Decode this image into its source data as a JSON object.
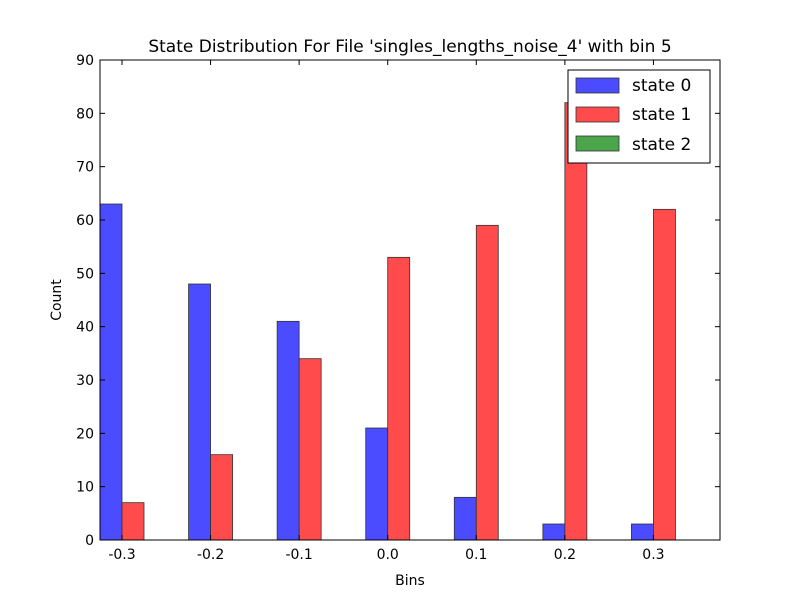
{
  "chart_data": {
    "type": "bar",
    "title": "State Distribution For File 'singles_lengths_noise_4' with bin 5",
    "xlabel": "Bins",
    "ylabel": "Count",
    "categories": [
      "-0.3",
      "-0.2",
      "-0.1",
      "0.0",
      "0.1",
      "0.2",
      "0.3"
    ],
    "series": [
      {
        "name": "state 0",
        "color": "#4b4bff",
        "values": [
          63,
          48,
          41,
          21,
          8,
          3,
          3
        ]
      },
      {
        "name": "state 1",
        "color": "#ff4b4b",
        "values": [
          7,
          16,
          34,
          53,
          59,
          82,
          62
        ]
      },
      {
        "name": "state 2",
        "color": "#4ba64b",
        "values": [
          0,
          0,
          0,
          0,
          0,
          0,
          0
        ]
      }
    ],
    "ylim": [
      0,
      90
    ],
    "yticks": [
      0,
      10,
      20,
      30,
      40,
      50,
      60,
      70,
      80,
      90
    ],
    "grid": false,
    "legend_position": "top-right"
  }
}
